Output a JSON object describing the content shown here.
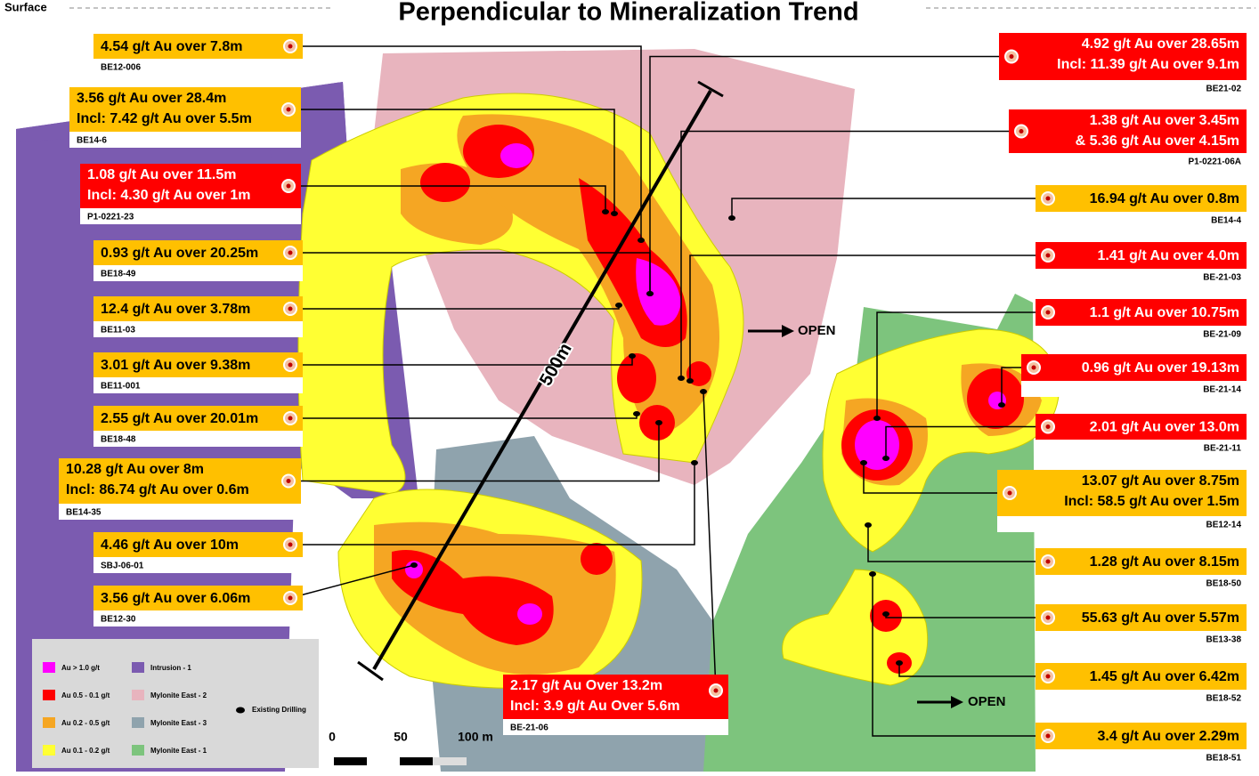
{
  "header": {
    "surface_label": "Surface",
    "title": "Perpendicular to Mineralization Trend"
  },
  "callouts": [
    {
      "lines": [
        "4.54 g/t Au over 7.8m"
      ],
      "hole": "BE12-006",
      "color": "#ffc000"
    },
    {
      "lines": [
        "3.56 g/t Au over 28.4m",
        "Incl: 7.42 g/t Au over 5.5m"
      ],
      "hole": "BE14-6",
      "color": "#ffc000"
    },
    {
      "lines": [
        "1.08 g/t Au over 11.5m",
        "Incl: 4.30 g/t Au over 1m"
      ],
      "hole": "P1-0221-23",
      "color": "#ff0000"
    },
    {
      "lines": [
        "0.93 g/t Au over 20.25m"
      ],
      "hole": "BE18-49",
      "color": "#ffc000"
    },
    {
      "lines": [
        "12.4 g/t Au over 3.78m"
      ],
      "hole": "BE11-03",
      "color": "#ffc000"
    },
    {
      "lines": [
        "3.01 g/t Au over 9.38m"
      ],
      "hole": "BE11-001",
      "color": "#ffc000"
    },
    {
      "lines": [
        "2.55 g/t Au over 20.01m"
      ],
      "hole": "BE18-48",
      "color": "#ffc000"
    },
    {
      "lines": [
        "10.28 g/t Au over 8m",
        "Incl: 86.74 g/t Au over 0.6m"
      ],
      "hole": "BE14-35",
      "color": "#ffc000"
    },
    {
      "lines": [
        "4.46 g/t Au over 10m"
      ],
      "hole": "SBJ-06-01",
      "color": "#ffc000"
    },
    {
      "lines": [
        "3.56 g/t Au over 6.06m"
      ],
      "hole": "BE12-30",
      "color": "#ffc000"
    },
    {
      "lines": [
        "2.17 g/t Au Over 13.2m",
        "Incl: 3.9 g/t Au Over 5.6m"
      ],
      "hole": "BE-21-06",
      "color": "#ff0000"
    },
    {
      "lines": [
        "4.92 g/t Au over 28.65m",
        "Incl: 11.39 g/t Au over 9.1m"
      ],
      "hole": "BE21-02",
      "color": "#ff0000"
    },
    {
      "lines": [
        "1.38 g/t Au over 3.45m",
        "& 5.36 g/t Au over 4.15m"
      ],
      "hole": "P1-0221-06A",
      "color": "#ff0000"
    },
    {
      "lines": [
        "16.94 g/t Au over 0.8m"
      ],
      "hole": "BE14-4",
      "color": "#ffc000"
    },
    {
      "lines": [
        "1.41 g/t Au over 4.0m"
      ],
      "hole": "BE-21-03",
      "color": "#ff0000"
    },
    {
      "lines": [
        "1.1 g/t Au over 10.75m"
      ],
      "hole": "BE-21-09",
      "color": "#ff0000"
    },
    {
      "lines": [
        "0.96 g/t Au over 19.13m"
      ],
      "hole": "BE-21-14",
      "color": "#ff0000"
    },
    {
      "lines": [
        "2.01 g/t Au over 13.0m"
      ],
      "hole": "BE-21-11",
      "color": "#ff0000"
    },
    {
      "lines": [
        "13.07 g/t Au over 8.75m",
        "Incl: 58.5 g/t Au over 1.5m"
      ],
      "hole": "BE12-14",
      "color": "#ffc000"
    },
    {
      "lines": [
        "1.28 g/t Au over 8.15m"
      ],
      "hole": "BE18-50",
      "color": "#ffc000"
    },
    {
      "lines": [
        "55.63 g/t Au over 5.57m"
      ],
      "hole": "BE13-38",
      "color": "#ffc000"
    },
    {
      "lines": [
        "1.45 g/t Au over 6.42m"
      ],
      "hole": "BE18-52",
      "color": "#ffc000"
    },
    {
      "lines": [
        "3.4 g/t Au over 2.29m"
      ],
      "hole": "BE18-51",
      "color": "#ffc000"
    }
  ],
  "legend": [
    {
      "label": "Au > 1.0 g/t",
      "color": "#ff00ff"
    },
    {
      "label": "Au 0.5 - 0.1 g/t",
      "color": "#ff0000"
    },
    {
      "label": "Au 0.2 - 0.5 g/t",
      "color": "#f5a623"
    },
    {
      "label": "Au 0.1 - 0.2 g/t",
      "color": "#ffff33"
    },
    {
      "label": "Intrusion - 1",
      "color": "#7b5bb0"
    },
    {
      "label": "Mylonite East - 2",
      "color": "#e8b4be"
    },
    {
      "label": "Mylonite East - 3",
      "color": "#8fa3ad"
    },
    {
      "label": "Mylonite East - 1",
      "color": "#7dc47d"
    },
    {
      "label": "Existing Drilling",
      "color": "#000000"
    }
  ],
  "scale": {
    "labels": [
      "0",
      "50",
      "100 m"
    ]
  },
  "section_length": "500m",
  "open_labels": [
    "OPEN",
    "OPEN"
  ]
}
